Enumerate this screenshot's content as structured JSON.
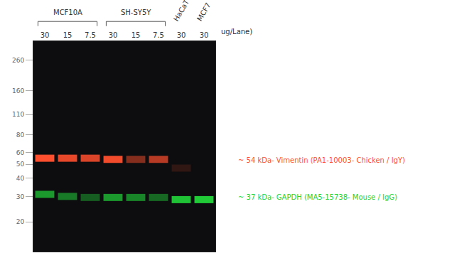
{
  "chart_data": {
    "type": "western_blot",
    "lanes": [
      {
        "group": "MCF10A",
        "load": 30
      },
      {
        "group": "MCF10A",
        "load": 15
      },
      {
        "group": "MCF10A",
        "load": 7.5
      },
      {
        "group": "SH-SY5Y",
        "load": 30
      },
      {
        "group": "SH-SY5Y",
        "load": 15
      },
      {
        "group": "SH-SY5Y",
        "load": 7.5
      },
      {
        "label": "HaCaT",
        "load": 30
      },
      {
        "label": "MCF7",
        "load": 30
      }
    ],
    "load_unit": "ug/Lane)",
    "log": "y",
    "ylim": [
      12.5,
      352
    ],
    "yticks": [
      260,
      160,
      110,
      80,
      60,
      50,
      40,
      30,
      20
    ],
    "bands": [
      {
        "label": "~ 54 kDa- Vimentin (PA1-10003- Chicken / IgY)",
        "color": "#ff4f2e",
        "kda": [
          55,
          55,
          55,
          54,
          54,
          54,
          47,
          null
        ],
        "intensity": [
          1.0,
          0.9,
          0.85,
          0.95,
          0.5,
          0.7,
          0.15,
          null
        ]
      },
      {
        "label": "~ 37 kDa- GAPDH (MA5-15738- Mouse / IgG)",
        "color": "#22d63a",
        "kda": [
          31,
          30,
          29.5,
          29.5,
          29.5,
          29.5,
          28.5,
          28.5
        ],
        "intensity": [
          0.7,
          0.55,
          0.4,
          0.7,
          0.6,
          0.45,
          0.9,
          0.95
        ]
      }
    ]
  }
}
